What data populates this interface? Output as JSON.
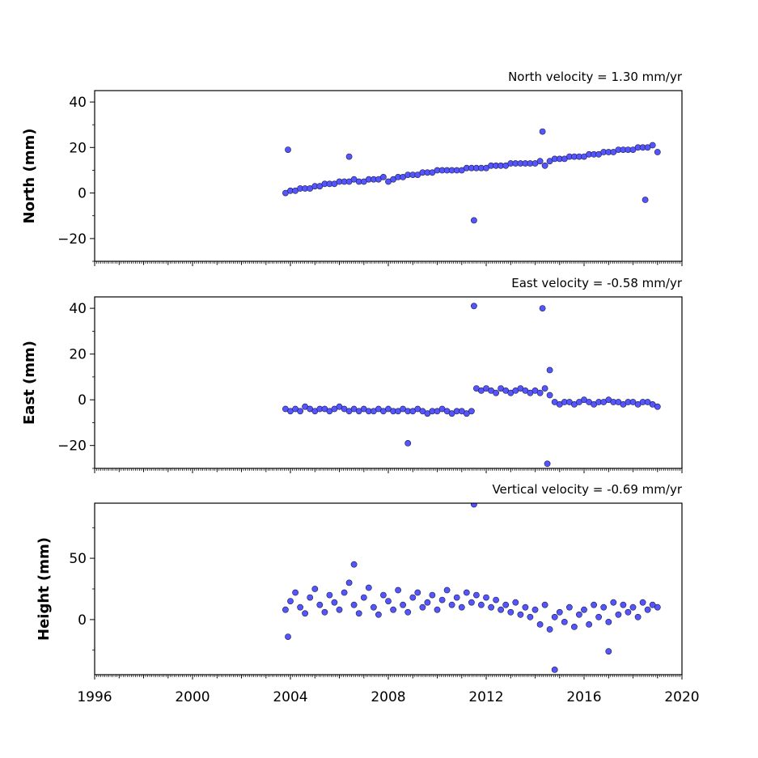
{
  "chart_data": [
    {
      "type": "scatter",
      "title": "North velocity = 1.30 mm/yr",
      "ylabel": "North (mm)",
      "xlim": [
        1996,
        2020
      ],
      "ylim": [
        -30,
        45
      ],
      "yticks": [
        -20,
        0,
        20,
        40
      ],
      "ytick_labels": [
        "−20",
        "0",
        "20",
        "40"
      ],
      "marker_color": "#5555ff",
      "grid": false,
      "series": [
        {
          "x": [
            2003.8,
            2004.0,
            2004.2,
            2004.4,
            2004.6,
            2004.8,
            2005.0,
            2005.2,
            2005.4,
            2005.6,
            2005.8,
            2006.0,
            2006.2,
            2006.4,
            2006.6,
            2006.8,
            2007.0,
            2007.2,
            2007.4,
            2007.6,
            2007.8,
            2008.0,
            2008.2,
            2008.4,
            2008.6,
            2008.8,
            2009.0,
            2009.2,
            2009.4,
            2009.6,
            2009.8,
            2010.0,
            2010.2,
            2010.4,
            2010.6,
            2010.8,
            2011.0,
            2011.2,
            2011.4,
            2011.6,
            2011.8,
            2012.0,
            2012.2,
            2012.4,
            2012.6,
            2012.8,
            2013.0,
            2013.2,
            2013.4,
            2013.6,
            2013.8,
            2014.0,
            2014.2,
            2014.4,
            2014.6,
            2014.8,
            2015.0,
            2015.2,
            2015.4,
            2015.6,
            2015.8,
            2016.0,
            2016.2,
            2016.4,
            2016.6,
            2016.8,
            2017.0,
            2017.2,
            2017.4,
            2017.6,
            2017.8,
            2018.0,
            2018.2,
            2018.4,
            2018.6,
            2018.8,
            2019.0,
            2003.9,
            2006.4,
            2011.5,
            2014.3,
            2018.5
          ],
          "y": [
            0,
            1,
            1,
            2,
            2,
            2,
            3,
            3,
            4,
            4,
            4,
            5,
            5,
            5,
            6,
            5,
            5,
            6,
            6,
            6,
            7,
            5,
            6,
            7,
            7,
            8,
            8,
            8,
            9,
            9,
            9,
            10,
            10,
            10,
            10,
            10,
            10,
            11,
            11,
            11,
            11,
            11,
            12,
            12,
            12,
            12,
            13,
            13,
            13,
            13,
            13,
            13,
            14,
            12,
            14,
            15,
            15,
            15,
            16,
            16,
            16,
            16,
            17,
            17,
            17,
            18,
            18,
            18,
            19,
            19,
            19,
            19,
            20,
            20,
            20,
            21,
            18,
            19,
            16,
            -12,
            27,
            -3
          ]
        }
      ]
    },
    {
      "type": "scatter",
      "title": "East velocity = -0.58 mm/yr",
      "ylabel": "East (mm)",
      "xlim": [
        1996,
        2020
      ],
      "ylim": [
        -30,
        45
      ],
      "yticks": [
        -20,
        0,
        20,
        40
      ],
      "ytick_labels": [
        "−20",
        "0",
        "20",
        "40"
      ],
      "marker_color": "#5555ff",
      "grid": false,
      "series": [
        {
          "x": [
            2003.8,
            2004.0,
            2004.2,
            2004.4,
            2004.6,
            2004.8,
            2005.0,
            2005.2,
            2005.4,
            2005.6,
            2005.8,
            2006.0,
            2006.2,
            2006.4,
            2006.6,
            2006.8,
            2007.0,
            2007.2,
            2007.4,
            2007.6,
            2007.8,
            2008.0,
            2008.2,
            2008.4,
            2008.6,
            2008.8,
            2009.0,
            2009.2,
            2009.4,
            2009.6,
            2009.8,
            2010.0,
            2010.2,
            2010.4,
            2010.6,
            2010.8,
            2011.0,
            2011.2,
            2011.4,
            2011.6,
            2011.8,
            2012.0,
            2012.2,
            2012.4,
            2012.6,
            2012.8,
            2013.0,
            2013.2,
            2013.4,
            2013.6,
            2013.8,
            2014.0,
            2014.2,
            2014.4,
            2014.6,
            2014.8,
            2015.0,
            2015.2,
            2015.4,
            2015.6,
            2015.8,
            2016.0,
            2016.2,
            2016.4,
            2016.6,
            2016.8,
            2017.0,
            2017.2,
            2017.4,
            2017.6,
            2017.8,
            2018.0,
            2018.2,
            2018.4,
            2018.6,
            2018.8,
            2019.0,
            2011.5,
            2014.3,
            2014.5,
            2008.8,
            2014.6
          ],
          "y": [
            -4,
            -5,
            -4,
            -5,
            -3,
            -4,
            -5,
            -4,
            -4,
            -5,
            -4,
            -3,
            -4,
            -5,
            -4,
            -5,
            -4,
            -5,
            -5,
            -4,
            -5,
            -4,
            -5,
            -5,
            -4,
            -5,
            -5,
            -4,
            -5,
            -6,
            -5,
            -5,
            -4,
            -5,
            -6,
            -5,
            -5,
            -6,
            -5,
            5,
            4,
            5,
            4,
            3,
            5,
            4,
            3,
            4,
            5,
            4,
            3,
            4,
            3,
            5,
            2,
            -1,
            -2,
            -1,
            -1,
            -2,
            -1,
            0,
            -1,
            -2,
            -1,
            -1,
            0,
            -1,
            -1,
            -2,
            -1,
            -1,
            -2,
            -1,
            -1,
            -2,
            -3,
            41,
            40,
            -28,
            -19,
            13
          ]
        }
      ]
    },
    {
      "type": "scatter",
      "title": "Vertical velocity = -0.69 mm/yr",
      "ylabel": "Height (mm)",
      "xlim": [
        1996,
        2020
      ],
      "ylim": [
        -45,
        95
      ],
      "yticks": [
        0,
        50
      ],
      "ytick_labels": [
        "0",
        "50"
      ],
      "marker_color": "#5555ff",
      "grid": false,
      "series": [
        {
          "x": [
            2003.8,
            2004.0,
            2004.2,
            2004.4,
            2004.6,
            2004.8,
            2005.0,
            2005.2,
            2005.4,
            2005.6,
            2005.8,
            2006.0,
            2006.2,
            2006.4,
            2006.6,
            2006.8,
            2007.0,
            2007.2,
            2007.4,
            2007.6,
            2007.8,
            2008.0,
            2008.2,
            2008.4,
            2008.6,
            2008.8,
            2009.0,
            2009.2,
            2009.4,
            2009.6,
            2009.8,
            2010.0,
            2010.2,
            2010.4,
            2010.6,
            2010.8,
            2011.0,
            2011.2,
            2011.4,
            2011.6,
            2011.8,
            2012.0,
            2012.2,
            2012.4,
            2012.6,
            2012.8,
            2013.0,
            2013.2,
            2013.4,
            2013.6,
            2013.8,
            2014.0,
            2014.2,
            2014.4,
            2014.6,
            2014.8,
            2015.0,
            2015.2,
            2015.4,
            2015.6,
            2015.8,
            2016.0,
            2016.2,
            2016.4,
            2016.6,
            2016.8,
            2017.0,
            2017.2,
            2017.4,
            2017.6,
            2017.8,
            2018.0,
            2018.2,
            2018.4,
            2018.6,
            2018.8,
            2019.0,
            2011.5,
            2014.8,
            2006.6,
            2003.9,
            2017.0
          ],
          "y": [
            8,
            15,
            22,
            10,
            5,
            18,
            25,
            12,
            6,
            20,
            14,
            8,
            22,
            30,
            12,
            5,
            18,
            26,
            10,
            4,
            20,
            15,
            8,
            24,
            12,
            6,
            18,
            22,
            10,
            14,
            20,
            8,
            16,
            24,
            12,
            18,
            10,
            22,
            14,
            20,
            12,
            18,
            10,
            16,
            8,
            12,
            6,
            14,
            4,
            10,
            2,
            8,
            -4,
            12,
            -8,
            2,
            6,
            -2,
            10,
            -6,
            4,
            8,
            -4,
            12,
            2,
            10,
            -2,
            14,
            4,
            12,
            6,
            10,
            2,
            14,
            8,
            12,
            10,
            94,
            -41,
            45,
            -14,
            -26
          ]
        }
      ]
    }
  ],
  "x_axis": {
    "ticks": [
      1996,
      2000,
      2004,
      2008,
      2012,
      2016,
      2020
    ],
    "tick_labels": [
      "1996",
      "2000",
      "2004",
      "2008",
      "2012",
      "2016",
      "2020"
    ]
  }
}
